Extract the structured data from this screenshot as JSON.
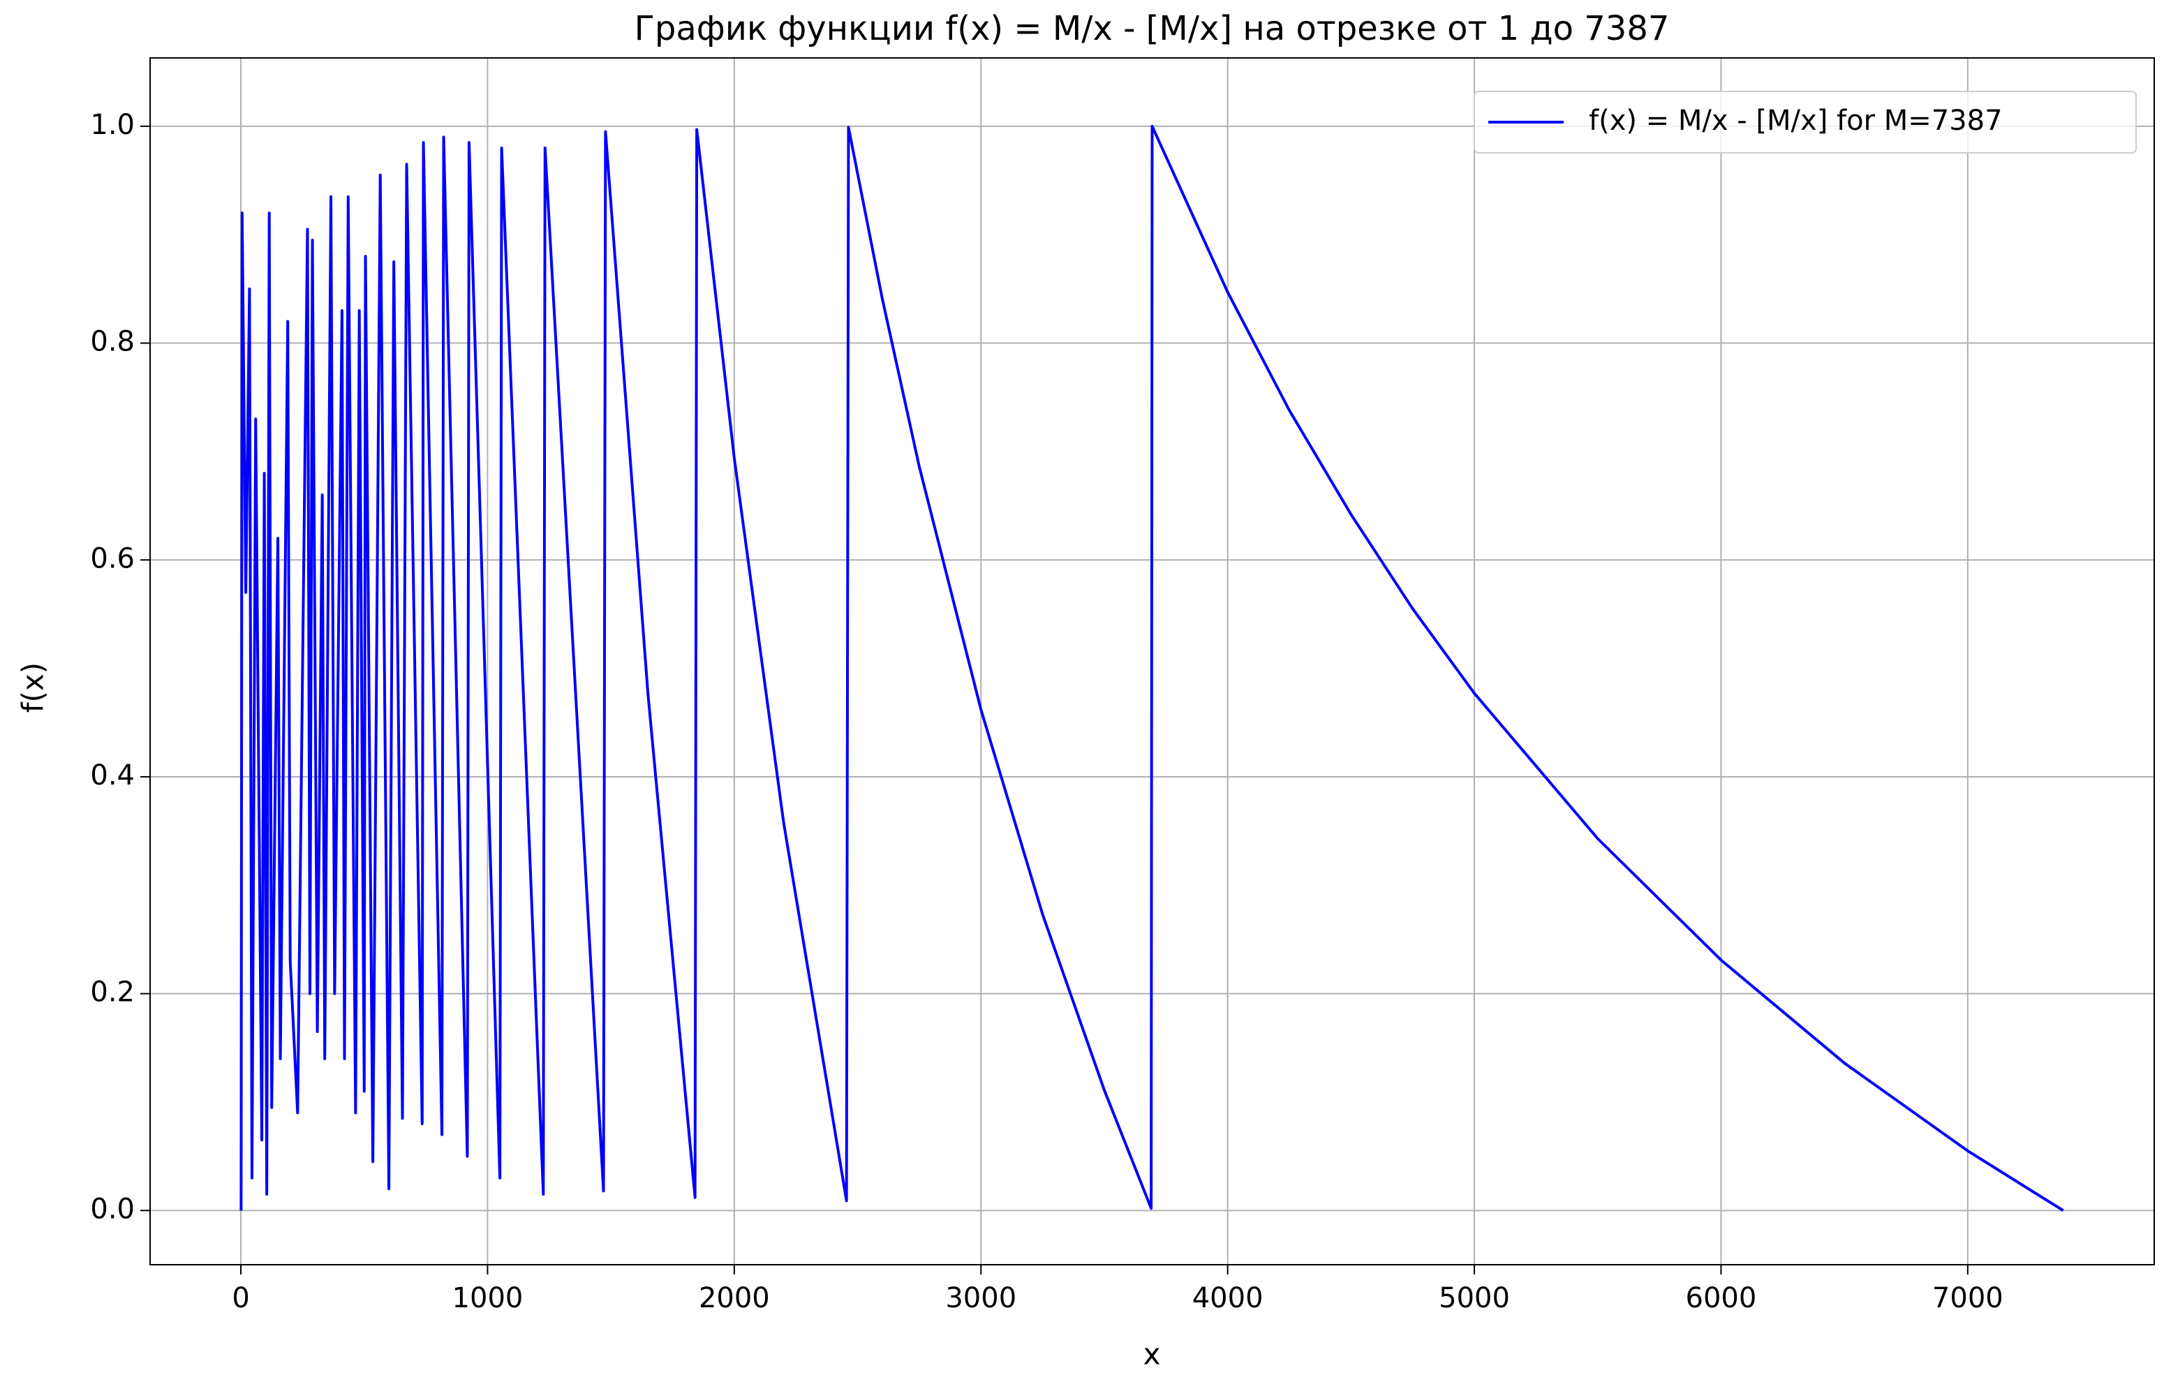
{
  "chart_data": {
    "type": "line",
    "title": "График функции f(x) = M/x - [M/x] на отрезке от 1 до 7387",
    "x_label": "x",
    "y_label": "f(x)",
    "series": [
      {
        "name": "f(x) = M/x - [M/x] for M=7387",
        "color": "#0000ff",
        "x": [
          1,
          5,
          20,
          35,
          45,
          60,
          85,
          95,
          105,
          115,
          125,
          150,
          160,
          190,
          200,
          230,
          270,
          280,
          290,
          310,
          330,
          340,
          365,
          380,
          410,
          420,
          435,
          465,
          480,
          500,
          505,
          535,
          565,
          600,
          620,
          655,
          672,
          735,
          740,
          815,
          822,
          918,
          925,
          1050,
          1057,
          1226,
          1233,
          1470,
          1478,
          1650,
          1841,
          1848,
          2000,
          2200,
          2455,
          2463,
          2600,
          2750,
          3000,
          3250,
          3500,
          3690,
          3694,
          4000,
          4250,
          4500,
          4750,
          5000,
          5500,
          6000,
          6500,
          7000,
          7387
        ],
        "values": [
          0,
          0.92,
          0.57,
          0.85,
          0.03,
          0.73,
          0.065,
          0.68,
          0.015,
          0.92,
          0.095,
          0.62,
          0.14,
          0.82,
          0.23,
          0.09,
          0.905,
          0.2,
          0.895,
          0.165,
          0.66,
          0.14,
          0.935,
          0.2,
          0.83,
          0.14,
          0.935,
          0.09,
          0.83,
          0.11,
          0.88,
          0.045,
          0.955,
          0.02,
          0.875,
          0.085,
          0.965,
          0.08,
          0.985,
          0.07,
          0.99,
          0.05,
          0.985,
          0.03,
          0.98,
          0.015,
          0.98,
          0.018,
          0.995,
          0.477,
          0.012,
          0.997,
          0.694,
          0.358,
          0.009,
          0.999,
          0.841,
          0.686,
          0.462,
          0.273,
          0.111,
          0.002,
          1.0,
          0.847,
          0.738,
          0.642,
          0.555,
          0.477,
          0.343,
          0.231,
          0.136,
          0.055,
          0
        ]
      }
    ],
    "xlim": [
      -368,
      7756
    ],
    "xticks": [
      0,
      1000,
      2000,
      3000,
      4000,
      5000,
      6000,
      7000
    ],
    "ylim": [
      -0.05,
      1.063
    ],
    "yticks": [
      {
        "value": 0,
        "label": "0.0"
      },
      {
        "value": 0.2,
        "label": "0.2"
      },
      {
        "value": 0.4,
        "label": "0.4"
      },
      {
        "value": 0.6,
        "label": "0.6"
      },
      {
        "value": 0.8,
        "label": "0.8"
      },
      {
        "value": 1,
        "label": "1.0"
      }
    ],
    "grid": true,
    "legend": "upper right"
  }
}
